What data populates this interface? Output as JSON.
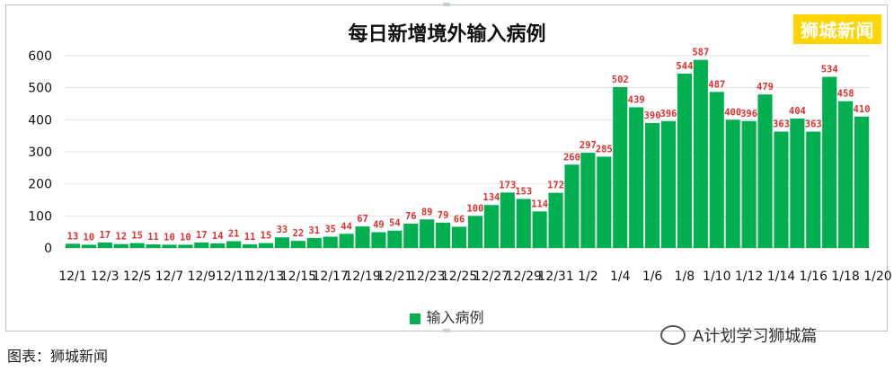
{
  "header": {
    "brand": "狮城新闻"
  },
  "legend": {
    "label": "输入病例",
    "color": "#00b050"
  },
  "footer": {
    "caption": "图表：狮城新闻",
    "wechat_label": "A计划学习狮城篇"
  },
  "chart_data": {
    "type": "bar",
    "title": "每日新增境外输入病例",
    "categories": [
      "12/1",
      "12/2",
      "12/3",
      "12/4",
      "12/5",
      "12/6",
      "12/7",
      "12/8",
      "12/9",
      "12/10",
      "12/11",
      "12/12",
      "12/13",
      "12/14",
      "12/15",
      "12/16",
      "12/17",
      "12/18",
      "12/19",
      "12/20",
      "12/21",
      "12/22",
      "12/23",
      "12/24",
      "12/25",
      "12/26",
      "12/27",
      "12/28",
      "12/29",
      "12/30",
      "12/31",
      "1/1",
      "1/2",
      "1/3",
      "1/4",
      "1/5",
      "1/6",
      "1/7",
      "1/8",
      "1/9",
      "1/10",
      "1/11",
      "1/12",
      "1/13",
      "1/14",
      "1/15",
      "1/16",
      "1/17",
      "1/18",
      "1/19"
    ],
    "tick_labels": [
      "12/1",
      "12/3",
      "12/5",
      "12/7",
      "12/9",
      "12/11",
      "12/13",
      "12/15",
      "12/17",
      "12/19",
      "12/21",
      "12/23",
      "12/25",
      "12/27",
      "12/29",
      "12/31",
      "1/2",
      "1/4",
      "1/6",
      "1/8",
      "1/10",
      "1/12",
      "1/14",
      "1/16",
      "1/18",
      "1/20"
    ],
    "series": [
      {
        "name": "输入病例",
        "values": [
          13,
          10,
          17,
          12,
          15,
          11,
          10,
          10,
          17,
          14,
          21,
          11,
          15,
          33,
          22,
          31,
          35,
          44,
          67,
          49,
          54,
          76,
          89,
          79,
          66,
          100,
          134,
          173,
          153,
          114,
          172,
          260,
          297,
          285,
          502,
          439,
          390,
          396,
          544,
          587,
          487,
          400,
          396,
          479,
          363,
          404,
          363,
          534,
          458,
          410
        ]
      }
    ],
    "ylim": [
      0,
      600
    ],
    "yticks": [
      0,
      100,
      200,
      300,
      400,
      500,
      600
    ],
    "grid": true,
    "legend_position": "bottom",
    "bar_color": "#00b050",
    "label_color": "#e03030"
  }
}
